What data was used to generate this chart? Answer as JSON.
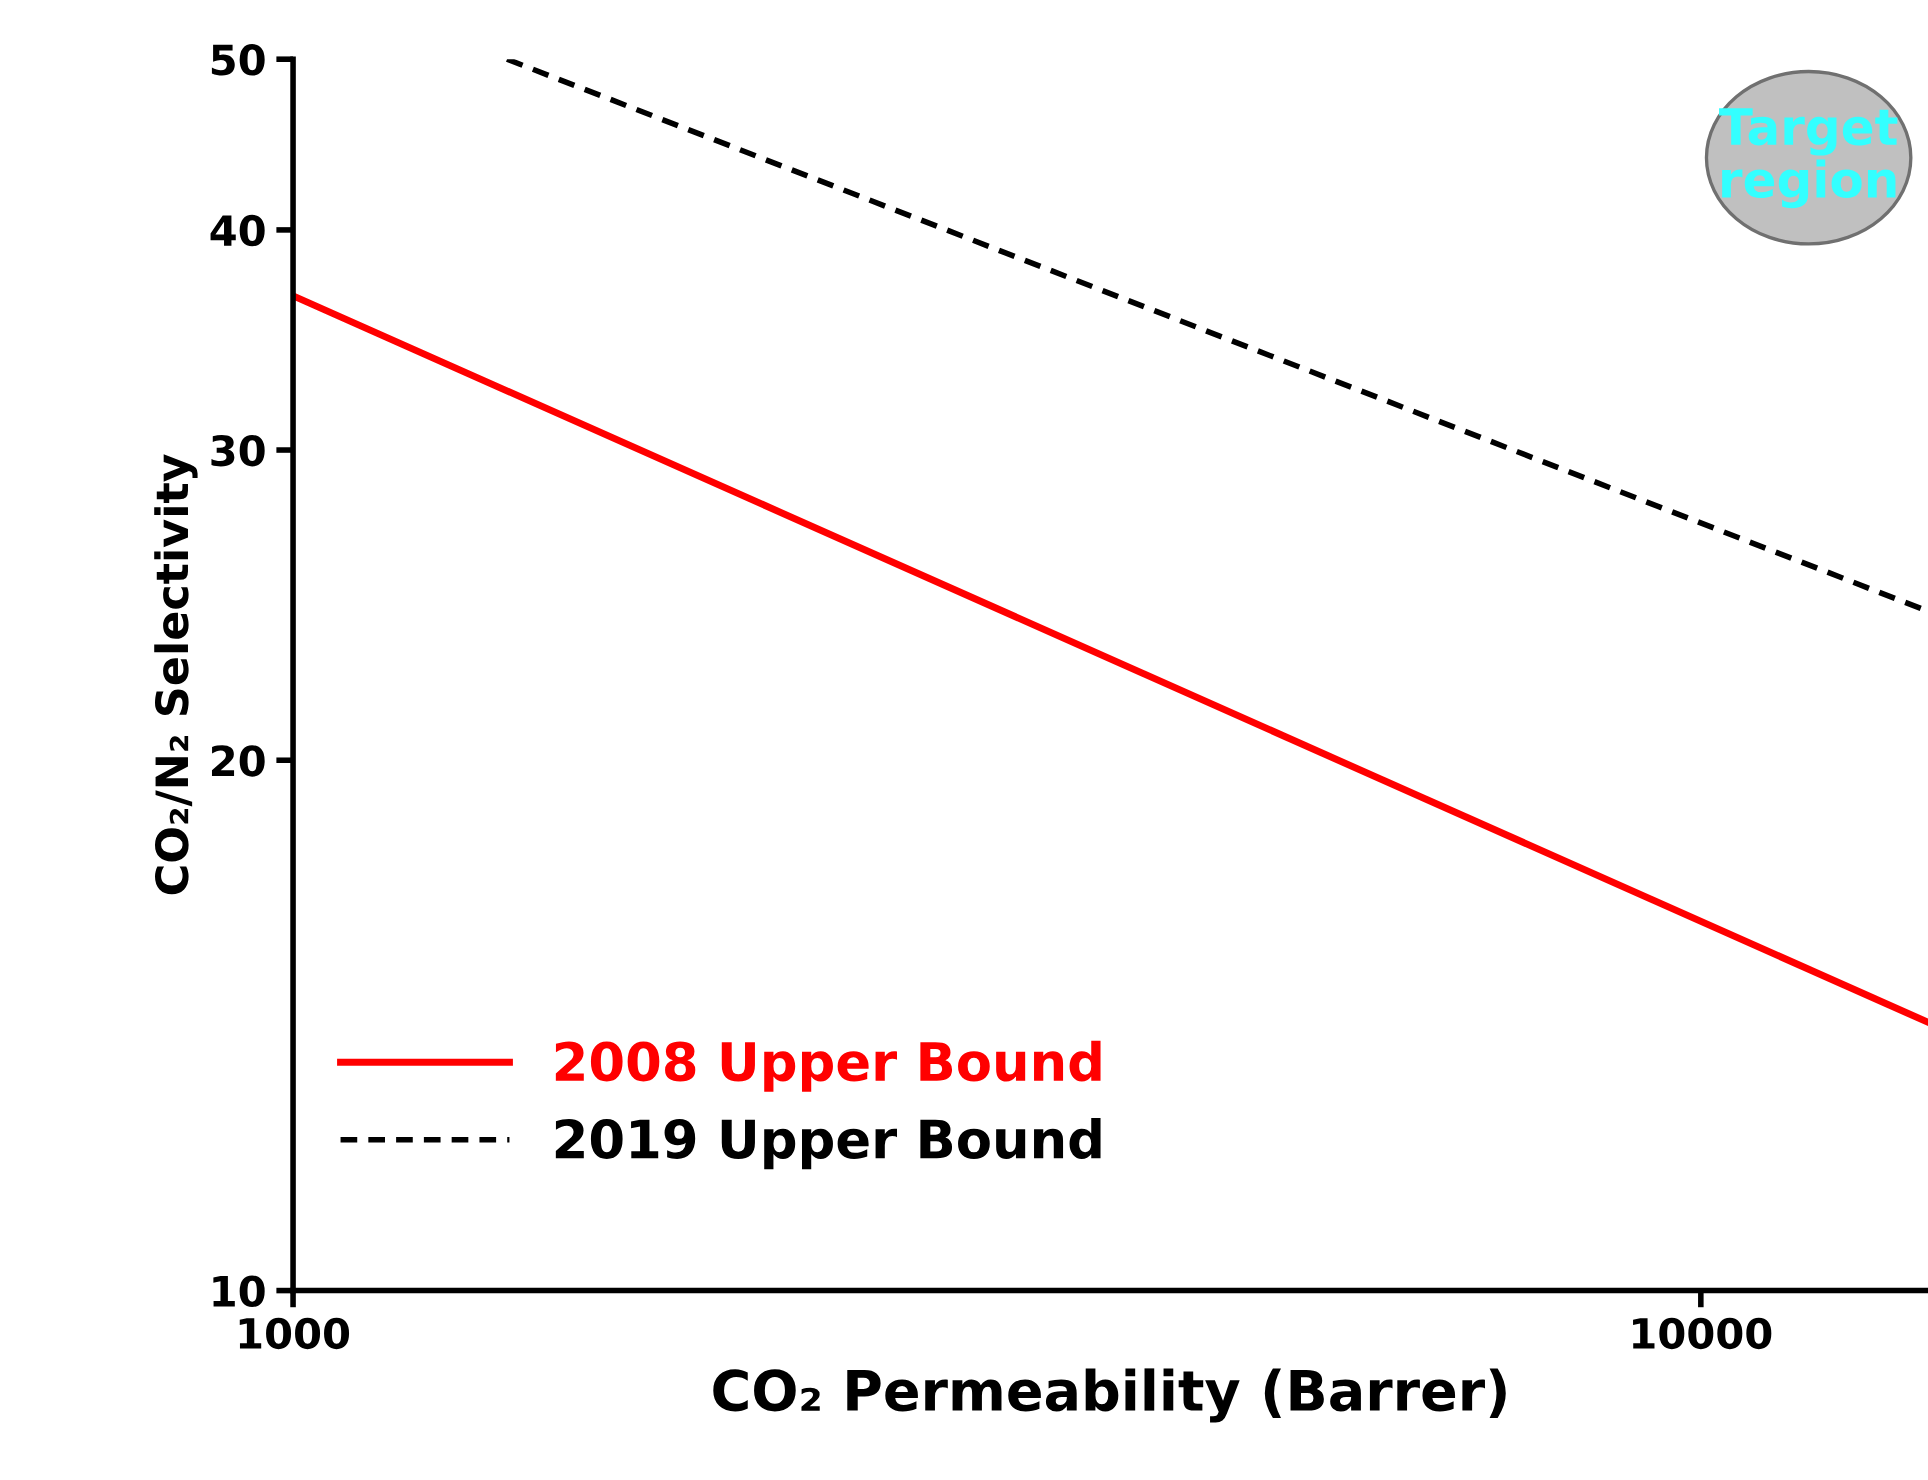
{
  "chart_data": {
    "type": "line",
    "xlabel": "CO₂ Permeability (Barrer)",
    "ylabel": "CO₂/N₂ Selectivity",
    "log": "xy",
    "xlim": [
      1000,
      14500
    ],
    "xticks": [
      1000,
      10000
    ],
    "ylim": [
      10,
      50
    ],
    "yticks": [
      10,
      20,
      30,
      40,
      50
    ],
    "series": [
      {
        "name": "2008 Upper Bound",
        "color": "#ff0000",
        "x": [
          1000,
          14500
        ],
        "values": [
          36.7,
          14.2
        ],
        "line_style": "solid"
      },
      {
        "name": "2019 Upper Bound",
        "color": "#000000",
        "x": [
          1419,
          14500
        ],
        "values": [
          50,
          24.3
        ],
        "line_style": "dashed"
      }
    ],
    "annotations": [
      "Target\nregion"
    ],
    "legend": "bottom left",
    "grid": false,
    "marker": "none"
  }
}
